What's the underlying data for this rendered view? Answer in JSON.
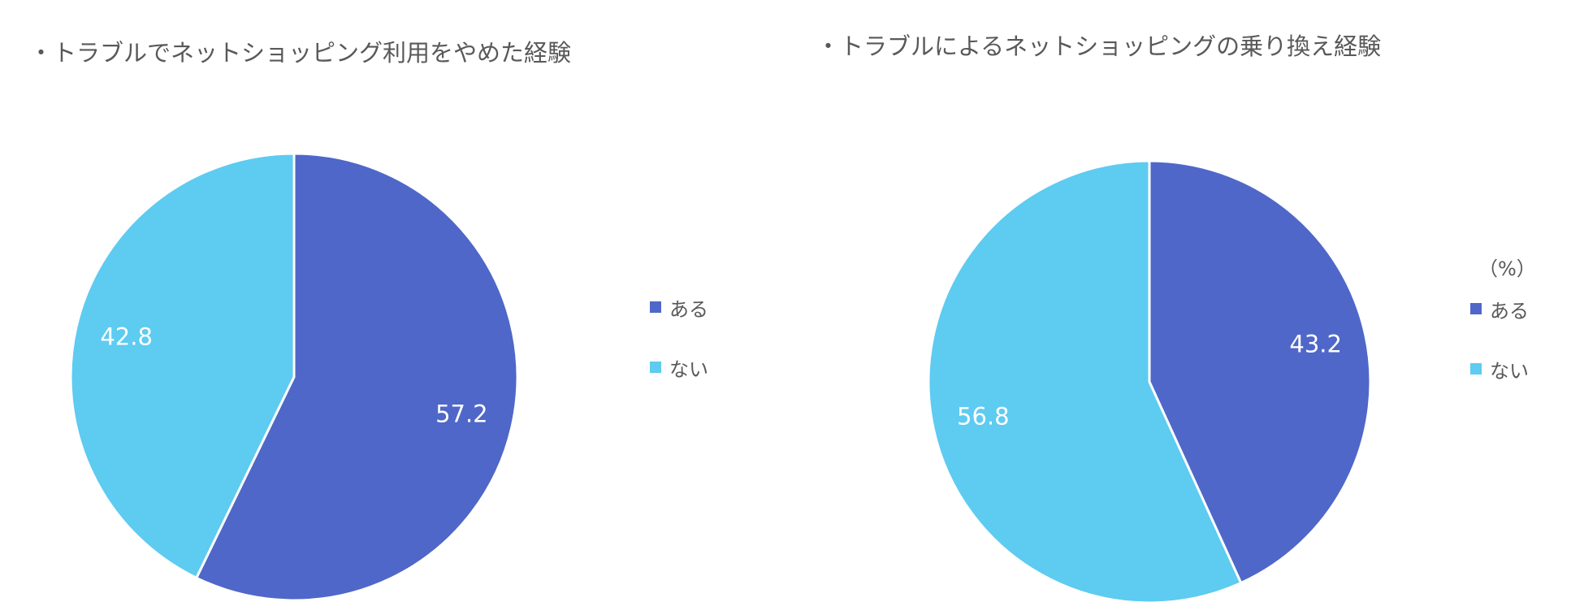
{
  "chart_data": [
    {
      "type": "pie",
      "title": "・トラブルでネットショッピング利用をやめた経験",
      "categories": [
        "ある",
        "ない"
      ],
      "values": [
        57.2,
        42.8
      ],
      "colors": [
        "#4F67C8",
        "#5ECBF1"
      ],
      "start": "12 o'clock",
      "direction": "clockwise",
      "legend": "right",
      "unit_label": ""
    },
    {
      "type": "pie",
      "title": "・トラブルによるネットショッピングの乗り換え経験",
      "categories": [
        "ある",
        "ない"
      ],
      "values": [
        43.2,
        56.8
      ],
      "colors": [
        "#4F67C8",
        "#5ECBF1"
      ],
      "start": "12 o'clock",
      "direction": "clockwise",
      "legend": "right",
      "unit_label": "（%）"
    }
  ]
}
